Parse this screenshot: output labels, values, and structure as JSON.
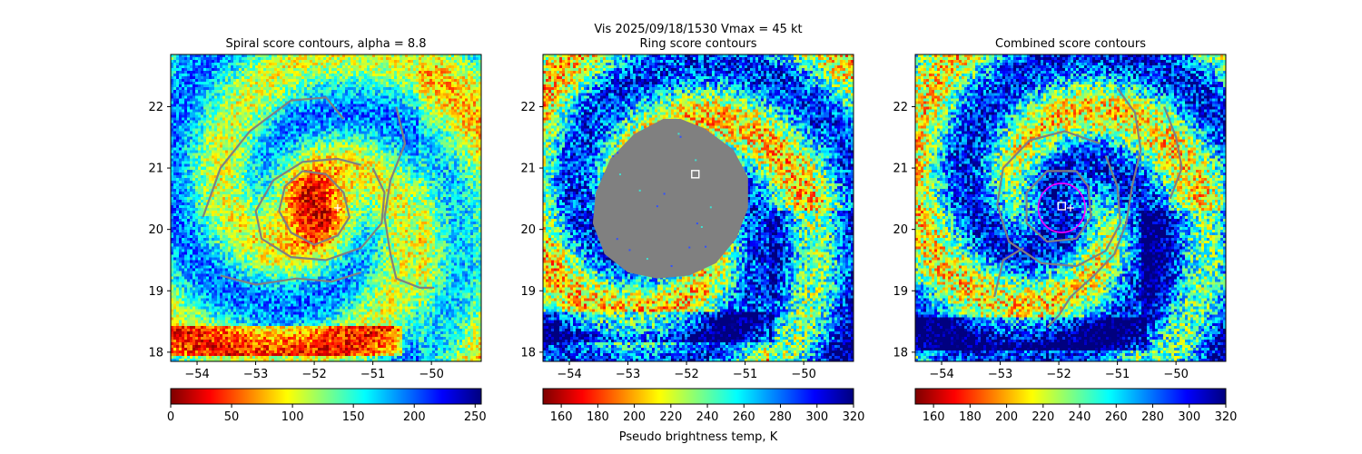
{
  "figure": {
    "suptitle_line1": "Vis  2025/09/18/1530    Vmax = 45 kt",
    "colorbar_label": "Pseudo brightness temp, K"
  },
  "colormaps": {
    "jet_r": [
      "#800000",
      "#ff0000",
      "#ff8000",
      "#ffff00",
      "#80ff80",
      "#00ffff",
      "#0080ff",
      "#0000ff",
      "#000080"
    ],
    "jet": [
      "#000080",
      "#0000ff",
      "#0080ff",
      "#00ffff",
      "#80ff80",
      "#ffff00",
      "#ff8000",
      "#ff0000",
      "#800000"
    ]
  },
  "chart_data": [
    {
      "type": "heatmap",
      "title": "Spiral score contours, alpha =  8.8",
      "x_ticks": [
        -54,
        -53,
        -52,
        -51,
        -50
      ],
      "y_ticks": [
        18,
        19,
        20,
        21,
        22
      ],
      "xlim": [
        -54.45,
        -49.15
      ],
      "ylim": [
        17.85,
        22.85
      ],
      "colormap": "jet_r",
      "colorbar": {
        "ticks": [
          0,
          50,
          100,
          150,
          200,
          250
        ],
        "range": [
          0,
          255
        ],
        "label": ""
      },
      "field": {
        "center_lon": -52.0,
        "center_lat": 20.35,
        "center_value": 20,
        "edge_value": 150,
        "spiral_arms": 2,
        "lower_band_lat": 18.2
      },
      "contours": [
        {
          "level": "inner",
          "color": "#808080",
          "points": [
            [
              -52.5,
              20.7
            ],
            [
              -52.2,
              20.95
            ],
            [
              -51.8,
              20.9
            ],
            [
              -51.5,
              20.6
            ],
            [
              -51.4,
              20.2
            ],
            [
              -51.6,
              19.9
            ],
            [
              -52.0,
              19.75
            ],
            [
              -52.4,
              19.95
            ],
            [
              -52.6,
              20.3
            ],
            [
              -52.5,
              20.7
            ]
          ]
        },
        {
          "level": "mid",
          "color": "#808080",
          "points": [
            [
              -51.2,
              21.05
            ],
            [
              -51.6,
              21.15
            ],
            [
              -52.2,
              21.1
            ],
            [
              -52.7,
              20.8
            ],
            [
              -53.0,
              20.3
            ],
            [
              -52.9,
              19.85
            ],
            [
              -52.4,
              19.55
            ],
            [
              -51.8,
              19.5
            ],
            [
              -51.2,
              19.7
            ],
            [
              -50.85,
              20.1
            ],
            [
              -50.8,
              20.6
            ],
            [
              -51.0,
              21.0
            ]
          ]
        },
        {
          "level": "arm-west",
          "color": "#808080",
          "points": [
            [
              -53.9,
              20.2
            ],
            [
              -53.6,
              21.0
            ],
            [
              -53.1,
              21.6
            ],
            [
              -52.4,
              22.1
            ],
            [
              -51.8,
              22.15
            ],
            [
              -51.5,
              21.8
            ]
          ]
        },
        {
          "level": "arm-south",
          "color": "#808080",
          "points": [
            [
              -53.6,
              19.25
            ],
            [
              -53.0,
              19.1
            ],
            [
              -52.3,
              19.2
            ],
            [
              -51.7,
              19.15
            ],
            [
              -51.2,
              19.3
            ]
          ]
        },
        {
          "level": "arm-east",
          "color": "#808080",
          "points": [
            [
              -50.6,
              22.0
            ],
            [
              -50.45,
              21.4
            ],
            [
              -50.7,
              20.8
            ],
            [
              -50.8,
              20.2
            ],
            [
              -50.7,
              19.6
            ],
            [
              -50.6,
              19.2
            ],
            [
              -50.2,
              19.05
            ],
            [
              -49.95,
              19.05
            ]
          ]
        }
      ],
      "markers": [
        {
          "kind": "plus",
          "lon": -51.6,
          "lat": 20.35,
          "color": "#ffffff"
        }
      ]
    },
    {
      "type": "heatmap",
      "title": "Ring score contours",
      "x_ticks": [
        -54,
        -53,
        -52,
        -51,
        -50
      ],
      "y_ticks": [
        18,
        19,
        20,
        21,
        22
      ],
      "xlim": [
        -54.45,
        -49.15
      ],
      "ylim": [
        17.85,
        22.85
      ],
      "colormap": "jet_r",
      "colorbar": {
        "ticks": [
          160,
          180,
          200,
          220,
          240,
          260,
          280,
          300,
          320
        ],
        "range": [
          150,
          320
        ],
        "label": "Pseudo brightness temp, K"
      },
      "field": {
        "center_lon": -52.3,
        "center_lat": 20.2,
        "center_value": 300,
        "edge_value": 250,
        "spiral_arms": 2,
        "lower_band_lat": 18.4
      },
      "mask": {
        "color": "#808080",
        "points": [
          [
            -52.4,
            21.8
          ],
          [
            -52.9,
            21.55
          ],
          [
            -53.3,
            21.15
          ],
          [
            -53.55,
            20.6
          ],
          [
            -53.6,
            20.1
          ],
          [
            -53.4,
            19.6
          ],
          [
            -53.0,
            19.3
          ],
          [
            -52.5,
            19.2
          ],
          [
            -51.95,
            19.25
          ],
          [
            -51.5,
            19.45
          ],
          [
            -51.15,
            19.85
          ],
          [
            -50.95,
            20.35
          ],
          [
            -50.95,
            20.85
          ],
          [
            -51.2,
            21.3
          ],
          [
            -51.7,
            21.65
          ],
          [
            -52.1,
            21.8
          ]
        ]
      },
      "contours": [],
      "markers": [
        {
          "kind": "square",
          "lon": -51.85,
          "lat": 20.9,
          "color": "#ffffff"
        }
      ]
    },
    {
      "type": "heatmap",
      "title": "Combined score contours",
      "x_ticks": [
        -54,
        -53,
        -52,
        -51,
        -50
      ],
      "y_ticks": [
        18,
        19,
        20,
        21,
        22
      ],
      "xlim": [
        -54.45,
        -49.15
      ],
      "ylim": [
        17.85,
        22.85
      ],
      "colormap": "jet_r",
      "colorbar": {
        "ticks": [
          160,
          180,
          200,
          220,
          240,
          260,
          280,
          300,
          320
        ],
        "range": [
          150,
          320
        ],
        "label": ""
      },
      "field": {
        "center_lon": -52.0,
        "center_lat": 20.35,
        "center_value": 305,
        "edge_value": 255,
        "spiral_arms": 2,
        "lower_band_lat": 18.3
      },
      "contours": [
        {
          "level": "inner",
          "color": "#808080",
          "points": [
            [
              -51.7,
              20.95
            ],
            [
              -52.2,
              20.95
            ],
            [
              -52.55,
              20.6
            ],
            [
              -52.55,
              20.1
            ],
            [
              -52.2,
              19.8
            ],
            [
              -51.7,
              19.85
            ],
            [
              -51.45,
              20.2
            ],
            [
              -51.5,
              20.7
            ],
            [
              -51.7,
              20.95
            ]
          ]
        },
        {
          "level": "mid",
          "color": "#808080",
          "points": [
            [
              -51.3,
              21.4
            ],
            [
              -51.9,
              21.6
            ],
            [
              -52.5,
              21.45
            ],
            [
              -52.95,
              21.0
            ],
            [
              -53.05,
              20.4
            ],
            [
              -52.85,
              19.8
            ],
            [
              -52.3,
              19.45
            ],
            [
              -51.7,
              19.4
            ],
            [
              -51.2,
              19.65
            ],
            [
              -50.95,
              20.1
            ],
            [
              -51.0,
              20.7
            ],
            [
              -51.2,
              21.2
            ]
          ]
        },
        {
          "level": "arm-east",
          "color": "#808080",
          "points": [
            [
              -51.0,
              22.3
            ],
            [
              -50.7,
              21.9
            ],
            [
              -50.6,
              21.3
            ],
            [
              -50.75,
              20.7
            ],
            [
              -50.85,
              20.1
            ],
            [
              -51.05,
              19.6
            ],
            [
              -51.4,
              19.25
            ],
            [
              -51.8,
              18.9
            ],
            [
              -52.0,
              18.6
            ],
            [
              -52.2,
              18.4
            ]
          ]
        },
        {
          "level": "arm-west",
          "color": "#808080",
          "points": [
            [
              -53.1,
              18.9
            ],
            [
              -52.95,
              19.5
            ],
            [
              -52.6,
              19.7
            ]
          ]
        },
        {
          "level": "arm-far-east",
          "color": "#808080",
          "points": [
            [
              -50.2,
              22.0
            ],
            [
              -50.0,
              21.5
            ],
            [
              -49.9,
              21.0
            ],
            [
              -50.1,
              20.5
            ]
          ]
        }
      ],
      "markers": [
        {
          "kind": "circle",
          "lon": -51.95,
          "lat": 20.35,
          "r_deg": 0.4,
          "color": "#ff00ff"
        },
        {
          "kind": "square",
          "lon": -51.95,
          "lat": 20.38,
          "color": "#ffffff"
        },
        {
          "kind": "plus",
          "lon": -51.8,
          "lat": 20.35,
          "color": "#ffffff"
        }
      ]
    }
  ]
}
